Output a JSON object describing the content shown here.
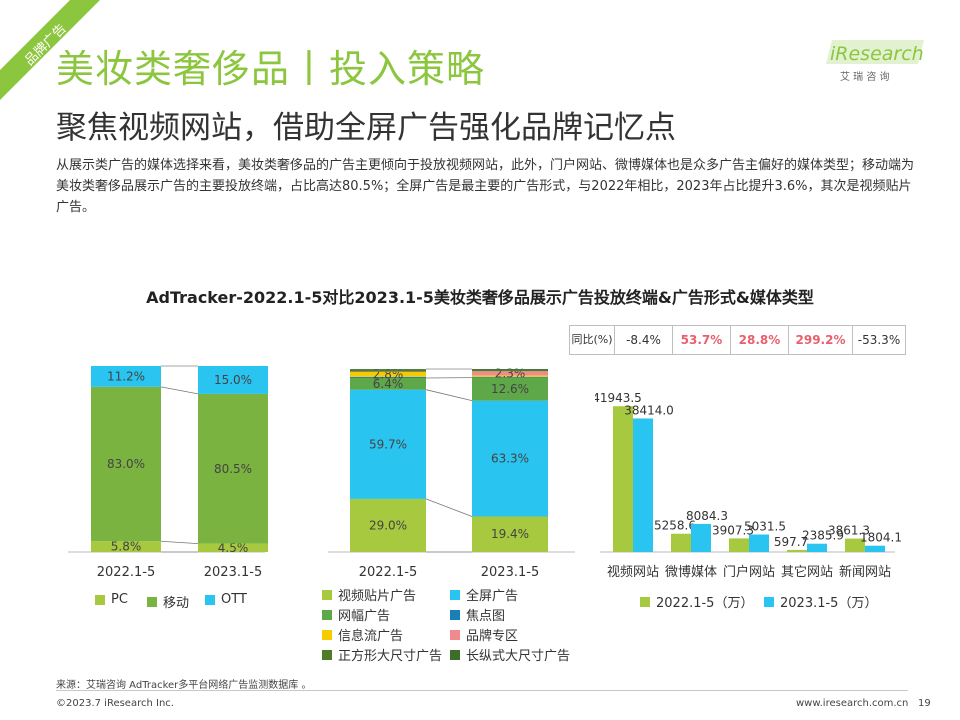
{
  "corner_tag": "品牌广告",
  "header": {
    "title": "美妆类奢侈品丨投入策略",
    "subtitle": "聚焦视频网站，借助全屏广告强化品牌记忆点",
    "description": "从展示类广告的媒体选择来看，美妆类奢侈品的广告主更倾向于投放视频网站，此外，门户网站、微博媒体也是众多广告主偏好的媒体类型；移动端为美妆类奢侈品展示广告的主要投放终端，占比高达80.5%；全屏广告是最主要的广告形式，与2022年相比，2023年占比提升3.6%，其次是视频贴片广告。"
  },
  "logo": {
    "text": "iResearch",
    "sub": "艾 瑞 咨 询"
  },
  "chart_title": "AdTracker-2022.1-5对比2023.1-5美妆类奢侈品展示广告投放终端&广告形式&媒体类型",
  "yoy": {
    "label": "同比(%)",
    "values": [
      "-8.4%",
      "53.7%",
      "28.8%",
      "299.2%",
      "-53.3%"
    ],
    "highlight_color": "#e8606c",
    "highlight": [
      false,
      true,
      true,
      true,
      false
    ]
  },
  "chart_data": [
    {
      "type": "bar",
      "stacked": true,
      "percent": true,
      "categories": [
        "2022.1-5",
        "2023.1-5"
      ],
      "series": [
        {
          "name": "PC",
          "color": "#a6c93f",
          "values": [
            5.8,
            4.5
          ],
          "labels": [
            "5.8%",
            "4.5%"
          ]
        },
        {
          "name": "移动",
          "color": "#7ab340",
          "values": [
            83.0,
            80.5
          ],
          "labels": [
            "83.0%",
            "80.5%"
          ]
        },
        {
          "name": "OTT",
          "color": "#29c4ef",
          "values": [
            11.2,
            15.0
          ],
          "labels": [
            "11.2%",
            "15.0%"
          ]
        }
      ]
    },
    {
      "type": "bar",
      "stacked": true,
      "percent": true,
      "categories": [
        "2022.1-5",
        "2023.1-5"
      ],
      "series": [
        {
          "name": "视频贴片广告",
          "color": "#a6c93f",
          "values": [
            29.0,
            19.4
          ],
          "labels": [
            "29.0%",
            "19.4%"
          ]
        },
        {
          "name": "全屏广告",
          "color": "#29c4ef",
          "values": [
            59.7,
            63.3
          ],
          "labels": [
            "59.7%",
            "63.3%"
          ]
        },
        {
          "name": "网幅广告",
          "color": "#5ea84a",
          "values": [
            6.4,
            12.6
          ],
          "labels": [
            "6.4%",
            "12.6%"
          ]
        },
        {
          "name": "焦点图",
          "color": "#1a7fb5",
          "values": [
            0.6,
            0.4
          ],
          "labels": [
            "",
            ""
          ]
        },
        {
          "name": "信息流广告",
          "color": "#f6cc00",
          "values": [
            2.8,
            0.8
          ],
          "labels": [
            "2.8%",
            ""
          ]
        },
        {
          "name": "品牌专区",
          "color": "#f08a8f",
          "values": [
            0.1,
            2.3
          ],
          "labels": [
            "",
            "2.3%"
          ]
        },
        {
          "name": "正方形大尺寸广告",
          "color": "#4e7c2b",
          "values": [
            1.0,
            0.7
          ],
          "labels": [
            "",
            ""
          ]
        },
        {
          "name": "长纵式大尺寸广告",
          "color": "#3c6e2a",
          "values": [
            0.4,
            0.5
          ],
          "labels": [
            "",
            ""
          ]
        }
      ]
    },
    {
      "type": "bar",
      "categories": [
        "视频网站",
        "微博媒体",
        "门户网站",
        "其它网站",
        "新闻网站"
      ],
      "series": [
        {
          "name": "2022.1-5（万）",
          "color": "#a6c93f",
          "values": [
            41943.5,
            5258.6,
            3907.3,
            597.7,
            3861.3
          ],
          "labels": [
            "41943.5",
            "5258.6",
            "3907.3",
            "597.7",
            "3861.3"
          ]
        },
        {
          "name": "2023.1-5（万）",
          "color": "#29c4ef",
          "values": [
            38414.0,
            8084.3,
            5031.5,
            2385.9,
            1804.1
          ],
          "labels": [
            "38414.0",
            "8084.3",
            "5031.5",
            "2385.9",
            "1804.1"
          ]
        }
      ]
    }
  ],
  "footer": {
    "source": "来源：艾瑞咨询 AdTracker多平台网络广告监测数据库 。",
    "copyright": "©2023.7 iResearch Inc.",
    "url": "www.iresearch.com.cn",
    "page": "19"
  }
}
